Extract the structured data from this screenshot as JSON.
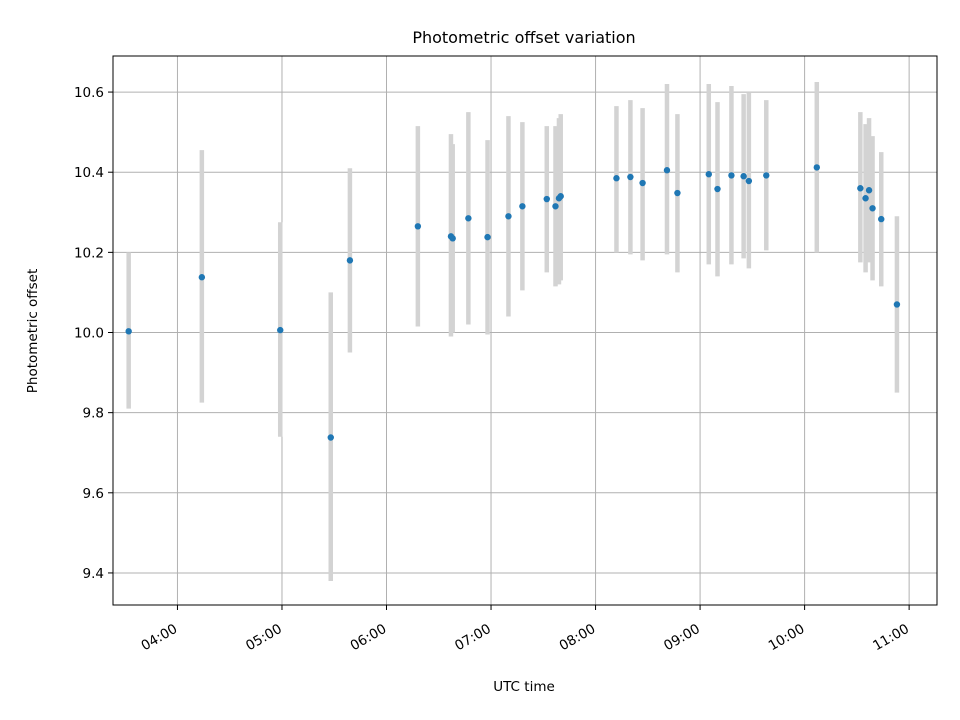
{
  "chart_data": {
    "type": "scatter",
    "title": "Photometric offset variation",
    "xlabel": "UTC time",
    "ylabel": "Photometric offset",
    "x_ticks": [
      "04:00",
      "05:00",
      "06:00",
      "07:00",
      "08:00",
      "09:00",
      "10:00",
      "11:00"
    ],
    "y_ticks": [
      "9.4",
      "9.6",
      "9.8",
      "10.0",
      "10.2",
      "10.4",
      "10.6"
    ],
    "xlim": [
      "03:23",
      "11:16"
    ],
    "ylim": [
      9.32,
      10.69
    ],
    "grid": true,
    "error_bars": true,
    "colors": {
      "points": "#1f77b4",
      "error_bars": "#d3d3d3",
      "grid": "#b0b0b0"
    },
    "series": [
      {
        "points": [
          {
            "t": "03:32",
            "y": 10.003,
            "lo": 9.81,
            "hi": 10.2
          },
          {
            "t": "04:14",
            "y": 10.138,
            "lo": 9.825,
            "hi": 10.455
          },
          {
            "t": "04:59",
            "y": 10.006,
            "lo": 9.74,
            "hi": 10.275
          },
          {
            "t": "05:28",
            "y": 9.738,
            "lo": 9.38,
            "hi": 10.1
          },
          {
            "t": "05:39",
            "y": 10.18,
            "lo": 9.95,
            "hi": 10.41
          },
          {
            "t": "06:18",
            "y": 10.265,
            "lo": 10.015,
            "hi": 10.515
          },
          {
            "t": "06:37",
            "y": 10.24,
            "lo": 9.99,
            "hi": 10.495
          },
          {
            "t": "06:38",
            "y": 10.235,
            "lo": 10.0,
            "hi": 10.47
          },
          {
            "t": "06:47",
            "y": 10.285,
            "lo": 10.02,
            "hi": 10.55
          },
          {
            "t": "06:58",
            "y": 10.238,
            "lo": 9.995,
            "hi": 10.48
          },
          {
            "t": "07:10",
            "y": 10.29,
            "lo": 10.04,
            "hi": 10.54
          },
          {
            "t": "07:18",
            "y": 10.315,
            "lo": 10.105,
            "hi": 10.525
          },
          {
            "t": "07:32",
            "y": 10.333,
            "lo": 10.15,
            "hi": 10.515
          },
          {
            "t": "07:37",
            "y": 10.315,
            "lo": 10.115,
            "hi": 10.515
          },
          {
            "t": "07:39",
            "y": 10.335,
            "lo": 10.12,
            "hi": 10.535
          },
          {
            "t": "07:40",
            "y": 10.34,
            "lo": 10.13,
            "hi": 10.545
          },
          {
            "t": "08:12",
            "y": 10.385,
            "lo": 10.2,
            "hi": 10.565
          },
          {
            "t": "08:20",
            "y": 10.388,
            "lo": 10.195,
            "hi": 10.58
          },
          {
            "t": "08:27",
            "y": 10.373,
            "lo": 10.18,
            "hi": 10.56
          },
          {
            "t": "08:41",
            "y": 10.405,
            "lo": 10.195,
            "hi": 10.62
          },
          {
            "t": "08:47",
            "y": 10.348,
            "lo": 10.15,
            "hi": 10.545
          },
          {
            "t": "09:05",
            "y": 10.395,
            "lo": 10.17,
            "hi": 10.62
          },
          {
            "t": "09:10",
            "y": 10.358,
            "lo": 10.14,
            "hi": 10.575
          },
          {
            "t": "09:18",
            "y": 10.392,
            "lo": 10.17,
            "hi": 10.615
          },
          {
            "t": "09:25",
            "y": 10.39,
            "lo": 10.185,
            "hi": 10.595
          },
          {
            "t": "09:28",
            "y": 10.378,
            "lo": 10.16,
            "hi": 10.6
          },
          {
            "t": "09:38",
            "y": 10.392,
            "lo": 10.205,
            "hi": 10.58
          },
          {
            "t": "10:07",
            "y": 10.412,
            "lo": 10.2,
            "hi": 10.625
          },
          {
            "t": "10:32",
            "y": 10.36,
            "lo": 10.175,
            "hi": 10.55
          },
          {
            "t": "10:35",
            "y": 10.335,
            "lo": 10.15,
            "hi": 10.52
          },
          {
            "t": "10:37",
            "y": 10.355,
            "lo": 10.175,
            "hi": 10.535
          },
          {
            "t": "10:39",
            "y": 10.31,
            "lo": 10.13,
            "hi": 10.49
          },
          {
            "t": "10:44",
            "y": 10.283,
            "lo": 10.115,
            "hi": 10.45
          },
          {
            "t": "10:53",
            "y": 10.07,
            "lo": 9.85,
            "hi": 10.29
          }
        ]
      }
    ]
  }
}
